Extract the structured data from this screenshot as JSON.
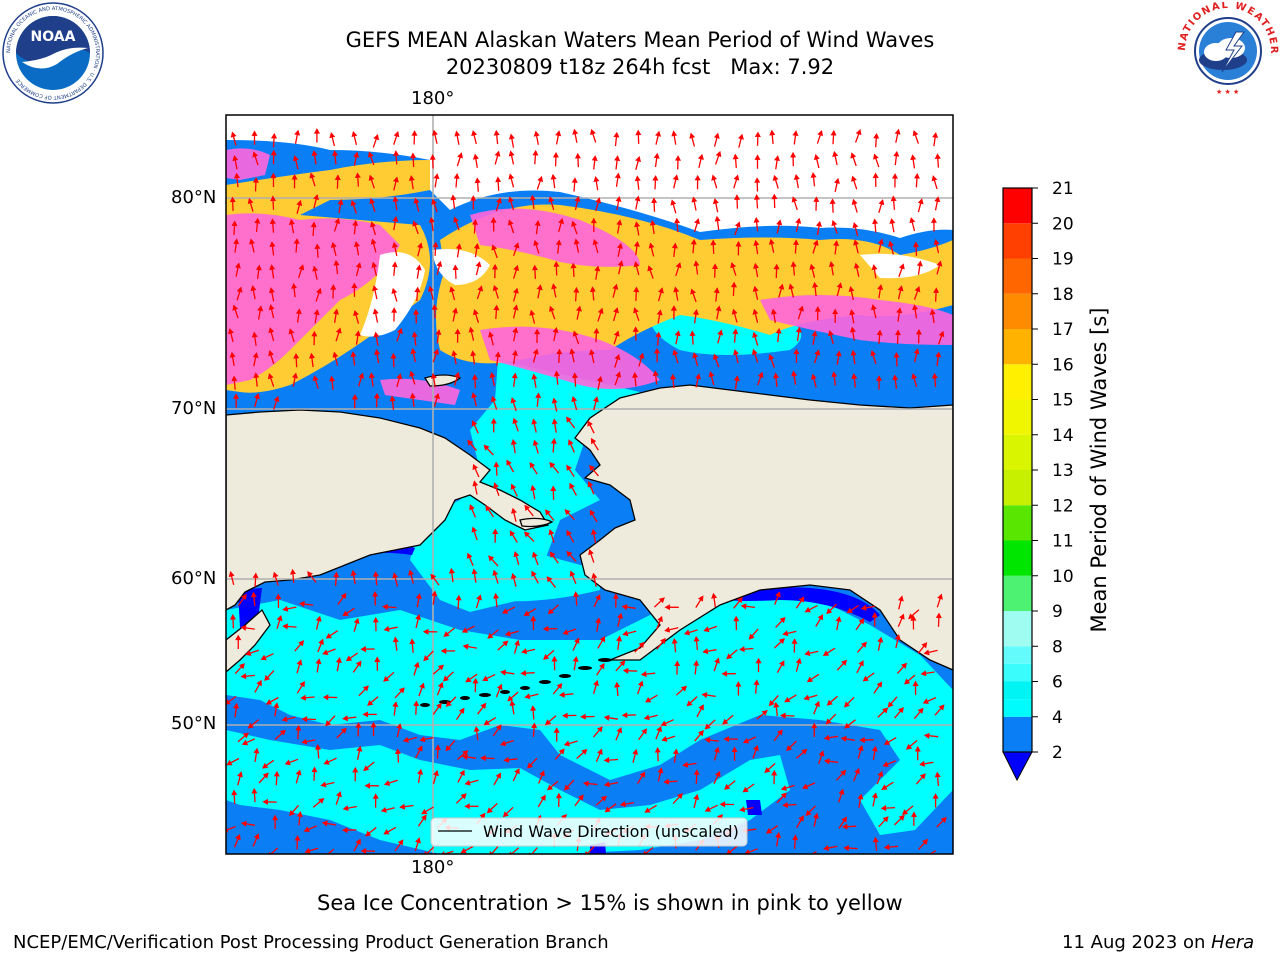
{
  "title": {
    "line1": "GEFS MEAN Alaskan Waters Mean Period of Wind Waves",
    "line2": "20230809 t18z 264h fcst   Max: 7.92"
  },
  "map": {
    "lon_labels": {
      "top": "180°",
      "bottom": "180°"
    },
    "lat_labels": [
      "80°N",
      "70°N",
      "60°N",
      "50°N"
    ],
    "legend_label": "Wind Wave Direction (unscaled)",
    "colors": {
      "land": "#efebdc",
      "sea_ice_pink": "#ff66dd",
      "sea_ice_yellow": "#ffcc33",
      "arrow": "#ff0000",
      "band_2_4": "#0a7ff5",
      "band_4_6": "#00ffff",
      "band_lt_2": "#0000ff",
      "grid": "#b0b0b0"
    }
  },
  "colorbar": {
    "label": "Mean Period of Wind Waves [s]",
    "ticks": [
      "21",
      "20",
      "19",
      "18",
      "17",
      "16",
      "15",
      "14",
      "13",
      "12",
      "11",
      "10",
      "9",
      "8",
      "6",
      "4",
      "2"
    ],
    "bands": [
      {
        "from": 2,
        "to": 4,
        "color": "#0a7ff5"
      },
      {
        "from": 4,
        "to": 5,
        "color": "#00fcfc"
      },
      {
        "from": 5,
        "to": 6,
        "color": "#00f4f4"
      },
      {
        "from": 6,
        "to": 7,
        "color": "#3afcfc"
      },
      {
        "from": 7,
        "to": 8,
        "color": "#63fbfb"
      },
      {
        "from": 8,
        "to": 9,
        "color": "#9ffcf0"
      },
      {
        "from": 9,
        "to": 10,
        "color": "#4df272"
      },
      {
        "from": 10,
        "to": 11,
        "color": "#00e600"
      },
      {
        "from": 11,
        "to": 12,
        "color": "#59e600"
      },
      {
        "from": 12,
        "to": 13,
        "color": "#c6f000"
      },
      {
        "from": 13,
        "to": 14,
        "color": "#d9f500"
      },
      {
        "from": 14,
        "to": 15,
        "color": "#f0f500"
      },
      {
        "from": 15,
        "to": 16,
        "color": "#fff000"
      },
      {
        "from": 16,
        "to": 17,
        "color": "#ffb300"
      },
      {
        "from": 17,
        "to": 18,
        "color": "#ff8c00"
      },
      {
        "from": 18,
        "to": 19,
        "color": "#ff6600"
      },
      {
        "from": 19,
        "to": 20,
        "color": "#ff4000"
      },
      {
        "from": 20,
        "to": 21,
        "color": "#ff0000"
      }
    ],
    "under_color": "#0000ff"
  },
  "caption": "Sea Ice Concentration > 15% is shown in pink to yellow",
  "footer": {
    "left": "NCEP/EMC/Verification Post Processing Product Generation Branch",
    "right_date": "11 Aug 2023 on ",
    "right_host": "Hera"
  },
  "logos": {
    "noaa_text": "NOAA",
    "noaa_ring_text": "NATIONAL OCEANIC AND ATMOSPHERIC ADMINISTRATION · U.S. DEPARTMENT OF COMMERCE",
    "nws_ring_text": "NATIONAL WEATHER SERVICE"
  }
}
